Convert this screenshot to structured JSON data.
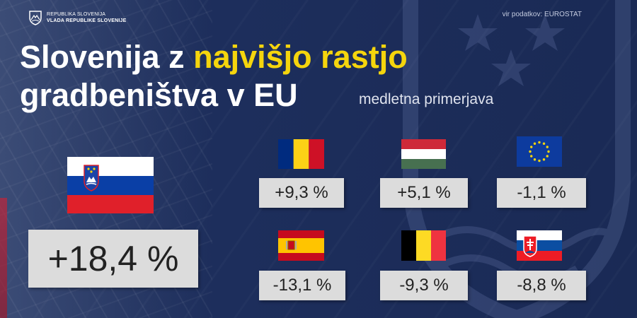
{
  "header": {
    "logo_line1": "REPUBLIKA SLOVENIJA",
    "logo_line2": "VLADA REPUBLIKE SLOVENIJE",
    "source": "vir podatkov: EUROSTAT"
  },
  "title": {
    "part1": "Slovenija z ",
    "highlight": "najvišjo rastjo",
    "line2": "gradbeništva v EU",
    "subtitle": "medletna primerjava"
  },
  "colors": {
    "background": "#1b2a55",
    "highlight": "#f5d50d",
    "box": "#dcdcdc"
  },
  "main": {
    "country": "Slovenia",
    "value": "+18,4 %"
  },
  "countries": [
    {
      "flag": "romania-flag",
      "value": "+9,3 %"
    },
    {
      "flag": "hungary-flag",
      "value": "+5,1 %"
    },
    {
      "flag": "eu-flag",
      "value": "-1,1 %"
    },
    {
      "flag": "spain-flag",
      "value": "-13,1 %"
    },
    {
      "flag": "belgium-flag",
      "value": "-9,3 %"
    },
    {
      "flag": "slovakia-flag",
      "value": "-8,8 %"
    }
  ]
}
